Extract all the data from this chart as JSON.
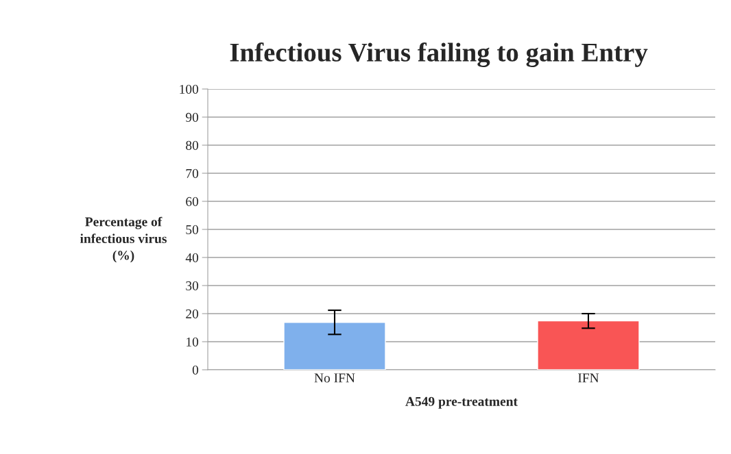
{
  "chart_data": {
    "type": "bar",
    "title": "Infectious Virus failing to gain Entry",
    "xlabel": "A549 pre-treatment",
    "ylabel": "Percentage of\ninfectious virus\n(%)",
    "categories": [
      "No IFN",
      "IFN"
    ],
    "values": [
      16.9,
      17.4
    ],
    "colors": [
      "#7fb0ec",
      "#f95555"
    ],
    "errors": [
      4.3,
      2.6
    ],
    "ylim": [
      0,
      100
    ],
    "yticks": [
      0,
      10,
      20,
      30,
      40,
      50,
      60,
      70,
      80,
      90,
      100
    ],
    "grid": "y",
    "legend": false
  }
}
